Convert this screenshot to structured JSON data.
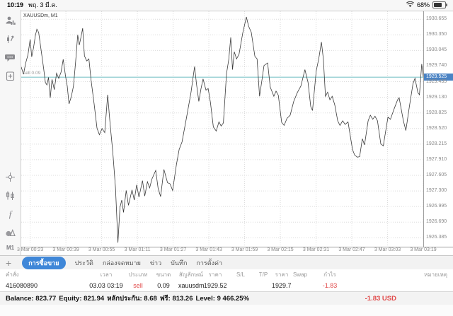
{
  "status_bar": {
    "time": "10:19",
    "date": "พฤ. 3 มี.ค.",
    "battery_percent": "68%",
    "icons": [
      "wifi-icon",
      "battery-icon"
    ]
  },
  "sidebar": {
    "icons_top": [
      "quotes-icon",
      "trade-icon",
      "chat-icon",
      "new-order-icon"
    ],
    "icons_bottom": [
      "crosshair-icon",
      "chart-type-icon",
      "indicators-icon",
      "objects-icon"
    ],
    "indicators_glyph": "f",
    "timeframe_label": "M1"
  },
  "chart": {
    "symbol_label": "XAUUSDm, M1",
    "sell_line_label": "sell 0.09",
    "current_price_tag": "1929.525",
    "colors": {
      "line": "#3a3a3a",
      "grid": "#dcdcdc",
      "trade_line": "#9fd3d6",
      "price_tag_bg": "#4a83c4",
      "accent_blue": "#3f87d8",
      "loss_red": "#e14b4b"
    }
  },
  "chart_data": {
    "type": "line",
    "title": "XAUUSDm, M1",
    "symbol": "XAUUSDm",
    "timeframe": "M1",
    "xlabel": "",
    "ylabel": "",
    "grid": true,
    "legend": "none",
    "ylim": [
      1926.21,
      1930.81
    ],
    "xlim_minutes": [
      0,
      180
    ],
    "x_axis_start": "3 Mar 00:19",
    "x_ticks": [
      "3 Mar 00:23",
      "3 Mar 00:39",
      "3 Mar 00:55",
      "3 Mar 01:11",
      "3 Mar 01:27",
      "3 Mar 01:43",
      "3 Mar 01:59",
      "3 Mar 02:15",
      "3 Mar 02:31",
      "3 Mar 02:47",
      "3 Mar 03:03",
      "3 Mar 03:19"
    ],
    "x_tick_minutes": [
      4,
      20,
      36,
      52,
      68,
      84,
      100,
      116,
      132,
      148,
      164,
      180
    ],
    "y_ticks": [
      1930.655,
      1930.35,
      1930.045,
      1929.74,
      1929.435,
      1929.13,
      1928.825,
      1928.52,
      1928.215,
      1927.91,
      1927.605,
      1927.3,
      1926.995,
      1926.69,
      1926.385
    ],
    "current_price": 1929.525,
    "trade_line": {
      "price": 1929.522,
      "label": "sell 0.09"
    },
    "series": [
      {
        "name": "XAUUSDm bid (M1)",
        "points": [
          [
            0,
            1929.72
          ],
          [
            1,
            1929.58
          ],
          [
            2,
            1929.8
          ],
          [
            3,
            1929.96
          ],
          [
            4,
            1930.26
          ],
          [
            4.7,
            1929.92
          ],
          [
            5.5,
            1930.1
          ],
          [
            6.3,
            1930.33
          ],
          [
            7,
            1930.46
          ],
          [
            7.8,
            1930.4
          ],
          [
            8.8,
            1930.08
          ],
          [
            10,
            1929.7
          ],
          [
            10.8,
            1929.42
          ],
          [
            11.5,
            1929.37
          ],
          [
            12.2,
            1929.52
          ],
          [
            13,
            1929.12
          ],
          [
            13.8,
            1929.48
          ],
          [
            14.8,
            1929.28
          ],
          [
            15.8,
            1929.6
          ],
          [
            16.8,
            1929.5
          ],
          [
            17.8,
            1929.62
          ],
          [
            18.8,
            1929.87
          ],
          [
            19.8,
            1929.55
          ],
          [
            20.6,
            1929.35
          ],
          [
            21.4,
            1929.0
          ],
          [
            22.4,
            1929.14
          ],
          [
            23.4,
            1929.35
          ],
          [
            24.3,
            1929.8
          ],
          [
            25.3,
            1930.35
          ],
          [
            26,
            1930.15
          ],
          [
            26.7,
            1930.3
          ],
          [
            27.5,
            1930.48
          ],
          [
            28.3,
            1929.94
          ],
          [
            29.3,
            1929.84
          ],
          [
            30.3,
            1929.88
          ],
          [
            31.3,
            1929.45
          ],
          [
            32.6,
            1929.01
          ],
          [
            33.9,
            1928.53
          ],
          [
            35,
            1928.4
          ],
          [
            36.2,
            1928.52
          ],
          [
            37.4,
            1928.44
          ],
          [
            38.7,
            1929.18
          ],
          [
            39.8,
            1928.6
          ],
          [
            41,
            1928.05
          ],
          [
            42.2,
            1927.35
          ],
          [
            43.3,
            1926.29
          ],
          [
            44.2,
            1926.98
          ],
          [
            45,
            1927.12
          ],
          [
            45.8,
            1926.88
          ],
          [
            47,
            1927.31
          ],
          [
            48,
            1927.02
          ],
          [
            49.6,
            1927.32
          ],
          [
            50.6,
            1927.12
          ],
          [
            51.7,
            1927.42
          ],
          [
            52.7,
            1927.18
          ],
          [
            54.3,
            1927.5
          ],
          [
            55.3,
            1927.2
          ],
          [
            56.5,
            1927.48
          ],
          [
            57.5,
            1927.36
          ],
          [
            58.5,
            1927.53
          ],
          [
            60.2,
            1927.7
          ],
          [
            61.3,
            1927.35
          ],
          [
            62.4,
            1927.19
          ],
          [
            63.9,
            1927.72
          ],
          [
            65.5,
            1927.46
          ],
          [
            66.6,
            1927.44
          ],
          [
            67.8,
            1927.31
          ],
          [
            69.5,
            1927.82
          ],
          [
            70.7,
            1928.11
          ],
          [
            72,
            1928.26
          ],
          [
            73.9,
            1928.71
          ],
          [
            76,
            1929.22
          ],
          [
            77.6,
            1929.73
          ],
          [
            78.5,
            1929.38
          ],
          [
            79.5,
            1929.05
          ],
          [
            80.5,
            1929.3
          ],
          [
            81.4,
            1929.49
          ],
          [
            82.7,
            1929.27
          ],
          [
            83.7,
            1929.3
          ],
          [
            84.7,
            1929.03
          ],
          [
            86,
            1928.55
          ],
          [
            87.3,
            1928.47
          ],
          [
            88.5,
            1928.65
          ],
          [
            89.5,
            1928.57
          ],
          [
            90.5,
            1928.63
          ],
          [
            91.9,
            1929.59
          ],
          [
            92.9,
            1929.87
          ],
          [
            93.8,
            1930.3
          ],
          [
            94.6,
            1929.67
          ],
          [
            95.4,
            1930.02
          ],
          [
            96.4,
            1929.88
          ],
          [
            97.5,
            1929.97
          ],
          [
            99.2,
            1930.39
          ],
          [
            100.8,
            1930.7
          ],
          [
            101.8,
            1930.52
          ],
          [
            103,
            1930.4
          ],
          [
            104.6,
            1929.93
          ],
          [
            105.6,
            1929.88
          ],
          [
            106.7,
            1929.15
          ],
          [
            107.7,
            1929.45
          ],
          [
            108.7,
            1929.75
          ],
          [
            110.3,
            1929.8
          ],
          [
            111.5,
            1929.33
          ],
          [
            113.1,
            1929.15
          ],
          [
            114.1,
            1929.25
          ],
          [
            115.1,
            1929.17
          ],
          [
            116.6,
            1928.64
          ],
          [
            117.7,
            1928.58
          ],
          [
            119,
            1928.72
          ],
          [
            120.4,
            1928.78
          ],
          [
            122,
            1929.05
          ],
          [
            123.6,
            1929.22
          ],
          [
            125.2,
            1929.35
          ],
          [
            127,
            1929.67
          ],
          [
            128.4,
            1929.42
          ],
          [
            129.6,
            1928.95
          ],
          [
            130.4,
            1928.87
          ],
          [
            132.1,
            1929.65
          ],
          [
            133.2,
            1929.88
          ],
          [
            134.4,
            1930.21
          ],
          [
            135.3,
            1929.87
          ],
          [
            136.2,
            1929.15
          ],
          [
            137.2,
            1929.23
          ],
          [
            138.2,
            1929.08
          ],
          [
            139.2,
            1929.15
          ],
          [
            140.4,
            1928.98
          ],
          [
            141.7,
            1928.67
          ],
          [
            142.7,
            1928.58
          ],
          [
            143.9,
            1928.67
          ],
          [
            145,
            1928.6
          ],
          [
            146.3,
            1928.65
          ],
          [
            148.3,
            1928.11
          ],
          [
            149.3,
            1928.0
          ],
          [
            150.5,
            1927.96
          ],
          [
            151.5,
            1927.97
          ],
          [
            152.7,
            1928.32
          ],
          [
            153.7,
            1928.2
          ],
          [
            155.3,
            1928.67
          ],
          [
            156.3,
            1928.78
          ],
          [
            157.4,
            1928.7
          ],
          [
            158.4,
            1928.76
          ],
          [
            159.5,
            1928.67
          ],
          [
            161,
            1928.22
          ],
          [
            162.1,
            1928.18
          ],
          [
            164.2,
            1928.74
          ],
          [
            165.3,
            1928.7
          ],
          [
            166.9,
            1928.9
          ],
          [
            168.5,
            1929.08
          ],
          [
            169.2,
            1929.12
          ],
          [
            171.1,
            1928.67
          ],
          [
            172.2,
            1928.48
          ],
          [
            173.8,
            1928.95
          ],
          [
            175.4,
            1929.4
          ],
          [
            176.3,
            1929.5
          ],
          [
            177.6,
            1929.22
          ],
          [
            178.3,
            1929.18
          ],
          [
            179.3,
            1929.78
          ],
          [
            180,
            1929.53
          ]
        ]
      }
    ]
  },
  "tabs": {
    "add_label": "+",
    "items": [
      {
        "label": "การซื้อขาย",
        "selected": true
      },
      {
        "label": "ประวัติ",
        "selected": false
      },
      {
        "label": "กล่องจดหมาย",
        "selected": false
      },
      {
        "label": "ข่าว",
        "selected": false
      },
      {
        "label": "บันทึก",
        "selected": false
      },
      {
        "label": "การตั้งค่า",
        "selected": false
      }
    ]
  },
  "orders_table": {
    "headers": [
      "คำสั่ง",
      "เวลา",
      "ประเภท",
      "ขนาด",
      "สัญลักษณ์",
      "ราคา",
      "S/L",
      "T/P",
      "ราคา",
      "Swap",
      "กำไร",
      "หมายเหตุ"
    ],
    "row": [
      "416080890",
      "03.03 03:19",
      "sell",
      "0.09",
      "xauusdm",
      "1929.522",
      "",
      "",
      "1929.725",
      "",
      "-1.83",
      ""
    ]
  },
  "account_bar": {
    "segments": [
      "Balance: 823.77",
      "Equity: 821.94",
      "หลักประกัน: 8.68",
      "ฟรี: 813.26",
      "Level: 9 466.25%"
    ],
    "profit": "-1.83 USD"
  }
}
